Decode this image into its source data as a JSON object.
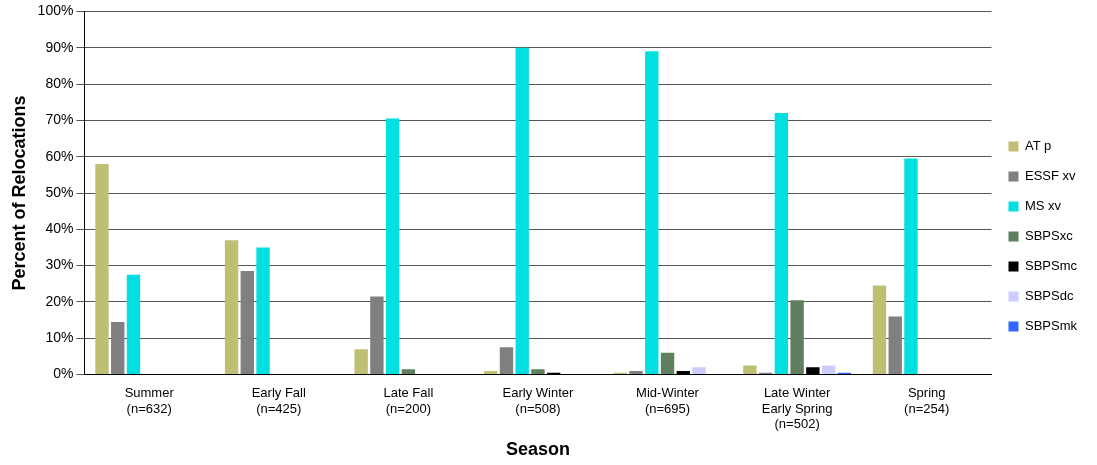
{
  "chart_data": {
    "type": "bar",
    "xlabel": "Season",
    "ylabel": "Percent of Relocations",
    "categories": [
      "Summer\n(n=632)",
      "Early Fall\n(n=425)",
      "Late Fall\n(n=200)",
      "Early Winter\n(n=508)",
      "Mid-Winter\n(n=695)",
      "Late Winter\nEarly Spring\n(n=502)",
      "Spring\n(n=254)"
    ],
    "series": [
      {
        "name": "AT p",
        "color": "#bfbf73",
        "values": [
          58,
          37,
          7,
          1,
          0.5,
          2.5,
          24.5
        ]
      },
      {
        "name": "ESSF xv",
        "color": "#808080",
        "values": [
          14.5,
          28.5,
          21.5,
          7.5,
          1,
          0.5,
          16
        ]
      },
      {
        "name": "MS xv",
        "color": "#00e0e0",
        "values": [
          27.5,
          35,
          70.5,
          90,
          89,
          72,
          59.5
        ]
      },
      {
        "name": "SBPSxc",
        "color": "#5f7f5f",
        "values": [
          0,
          0,
          1.5,
          1.5,
          6,
          20.5,
          0
        ]
      },
      {
        "name": "SBPSmc",
        "color": "#000000",
        "values": [
          0,
          0,
          0,
          0.5,
          1,
          2,
          0
        ]
      },
      {
        "name": "SBPSdc",
        "color": "#ccccff",
        "values": [
          0,
          0,
          0,
          0,
          2,
          2.5,
          0
        ]
      },
      {
        "name": "SBPSmk",
        "color": "#3366ff",
        "values": [
          0,
          0,
          0,
          0,
          0,
          0.5,
          0
        ]
      }
    ],
    "ylim": [
      0,
      100
    ],
    "yticks": [
      {
        "value": 0,
        "label": "0%"
      },
      {
        "value": 10,
        "label": "10%"
      },
      {
        "value": 20,
        "label": "20%"
      },
      {
        "value": 30,
        "label": "30%"
      },
      {
        "value": 40,
        "label": "40%"
      },
      {
        "value": 50,
        "label": "50%"
      },
      {
        "value": 60,
        "label": "60%"
      },
      {
        "value": 70,
        "label": "70%"
      },
      {
        "value": 80,
        "label": "80%"
      },
      {
        "value": 90,
        "label": "90%"
      },
      {
        "value": 100,
        "label": "100%"
      }
    ],
    "grid": "y",
    "legend": "right"
  }
}
